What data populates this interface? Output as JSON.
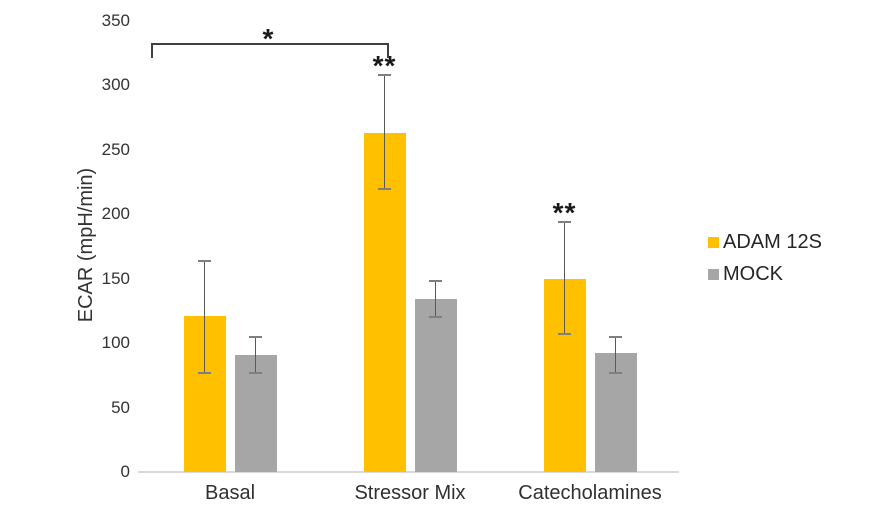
{
  "chart_data": {
    "type": "bar",
    "title": "",
    "ylabel": "ECAR (mpH/min)",
    "xlabel": "",
    "ylim": [
      0,
      350
    ],
    "yticks": [
      0,
      50,
      100,
      150,
      200,
      250,
      300,
      350
    ],
    "categories": [
      "Basal",
      "Stressor Mix",
      "Catecholamines"
    ],
    "series": [
      {
        "name": "ADAM 12S",
        "color": "#FFC000",
        "values": [
          121,
          263,
          150
        ],
        "error_plus": [
          43,
          45,
          44
        ],
        "error_minus": [
          44,
          43,
          43
        ],
        "significance": [
          "",
          "**",
          "**"
        ]
      },
      {
        "name": "MOCK",
        "color": "#A6A6A6",
        "values": [
          91,
          134,
          92
        ],
        "error_plus": [
          14,
          14,
          13
        ],
        "error_minus": [
          14,
          14,
          15
        ],
        "significance": [
          "",
          "",
          ""
        ]
      }
    ],
    "annotations": {
      "bracket": {
        "label": "*",
        "from_category": "Basal",
        "to_category": "Stressor Mix"
      }
    },
    "legend_position": "right",
    "grid": false,
    "colors": {
      "axis_line": "#d9d9d9",
      "error_bar": "#595959",
      "text": "#333333"
    }
  }
}
